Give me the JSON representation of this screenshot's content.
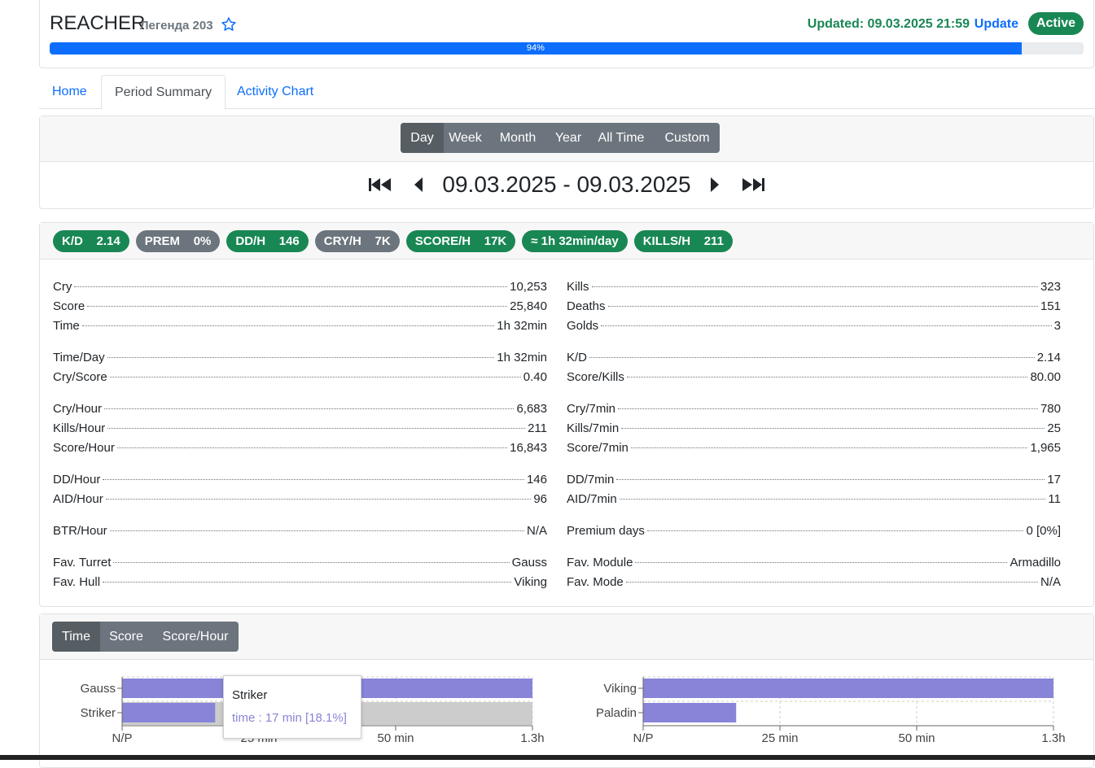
{
  "header": {
    "player_name": "REACHER",
    "rank": "Легенда 203",
    "updated": "Updated: 09.03.2025 21:59",
    "update_link": "Update",
    "status": "Active",
    "progress_label": "94%",
    "progress_value": 0.94
  },
  "tabs": [
    "Home",
    "Period Summary",
    "Activity Chart"
  ],
  "period": {
    "buttons": [
      "Day",
      "Week",
      "Month",
      "Year",
      "All Time",
      "Custom"
    ],
    "selected": "Day",
    "range_start": "09.03.2025",
    "range_sep": "-",
    "range_end": "09.03.2025"
  },
  "badges": [
    {
      "text": "K/D    2.14",
      "color": "#198754"
    },
    {
      "text": "PREM    0%",
      "color": "#6c757d"
    },
    {
      "text": "DD/H    146",
      "color": "#198754"
    },
    {
      "text": "CRY/H    7K",
      "color": "#6c757d"
    },
    {
      "text": "SCORE/H    17K",
      "color": "#198754"
    },
    {
      "text": "≈ 1h 32min/day",
      "color": "#198754"
    },
    {
      "text": "KILLS/H    211",
      "color": "#198754"
    }
  ],
  "stats_left": [
    {
      "label": "Cry",
      "value": "10,253"
    },
    {
      "label": "Score",
      "value": "25,840"
    },
    {
      "label": "Time",
      "value": "1h 32min"
    },
    {
      "label": "Time/Day",
      "value": "1h 32min"
    },
    {
      "label": "Cry/Score",
      "value": "0.40"
    },
    {
      "label": "Cry/Hour",
      "value": "6,683"
    },
    {
      "label": "Kills/Hour",
      "value": "211"
    },
    {
      "label": "Score/Hour",
      "value": "16,843"
    },
    {
      "label": "DD/Hour",
      "value": "146"
    },
    {
      "label": "AID/Hour",
      "value": "96"
    },
    {
      "label": "BTR/Hour",
      "value": "N/A"
    },
    {
      "label": "Fav. Turret",
      "value": "Gauss"
    },
    {
      "label": "Fav. Hull",
      "value": "Viking"
    }
  ],
  "stats_right": [
    {
      "label": "Kills",
      "value": "323"
    },
    {
      "label": "Deaths",
      "value": "151"
    },
    {
      "label": "Golds",
      "value": "3"
    },
    {
      "label": "K/D",
      "value": "2.14"
    },
    {
      "label": "Score/Kills",
      "value": "80.00"
    },
    {
      "label": "Cry/7min",
      "value": "780"
    },
    {
      "label": "Kills/7min",
      "value": "25"
    },
    {
      "label": "Score/7min",
      "value": "1,965"
    },
    {
      "label": "DD/7min",
      "value": "17"
    },
    {
      "label": "AID/7min",
      "value": "11"
    },
    {
      "label": "Premium days",
      "value": "0 [0%]"
    },
    {
      "label": "Fav. Module",
      "value": "Armadillo"
    },
    {
      "label": "Fav. Mode",
      "value": "N/A"
    }
  ],
  "chart_buttons": [
    "Time",
    "Score",
    "Score/Hour"
  ],
  "chart_selected": "Time",
  "chart_data": [
    {
      "type": "bar",
      "orientation": "horizontal",
      "categories": [
        "Gauss",
        "Striker"
      ],
      "values": [
        75,
        17
      ],
      "x_ticks": [
        "N/P",
        "25 min",
        "50 min",
        "1.3h"
      ],
      "xlim": [
        0,
        75
      ],
      "bar_color": "#8884d8",
      "highlight": "Striker"
    },
    {
      "type": "bar",
      "orientation": "horizontal",
      "categories": [
        "Viking",
        "Paladin"
      ],
      "values": [
        75,
        17
      ],
      "x_ticks": [
        "N/P",
        "25 min",
        "50 min",
        "1.3h"
      ],
      "xlim": [
        0,
        75
      ],
      "bar_color": "#8884d8"
    }
  ],
  "tooltip": {
    "title": "Striker",
    "body": "time : 17 min [18.1%]"
  }
}
